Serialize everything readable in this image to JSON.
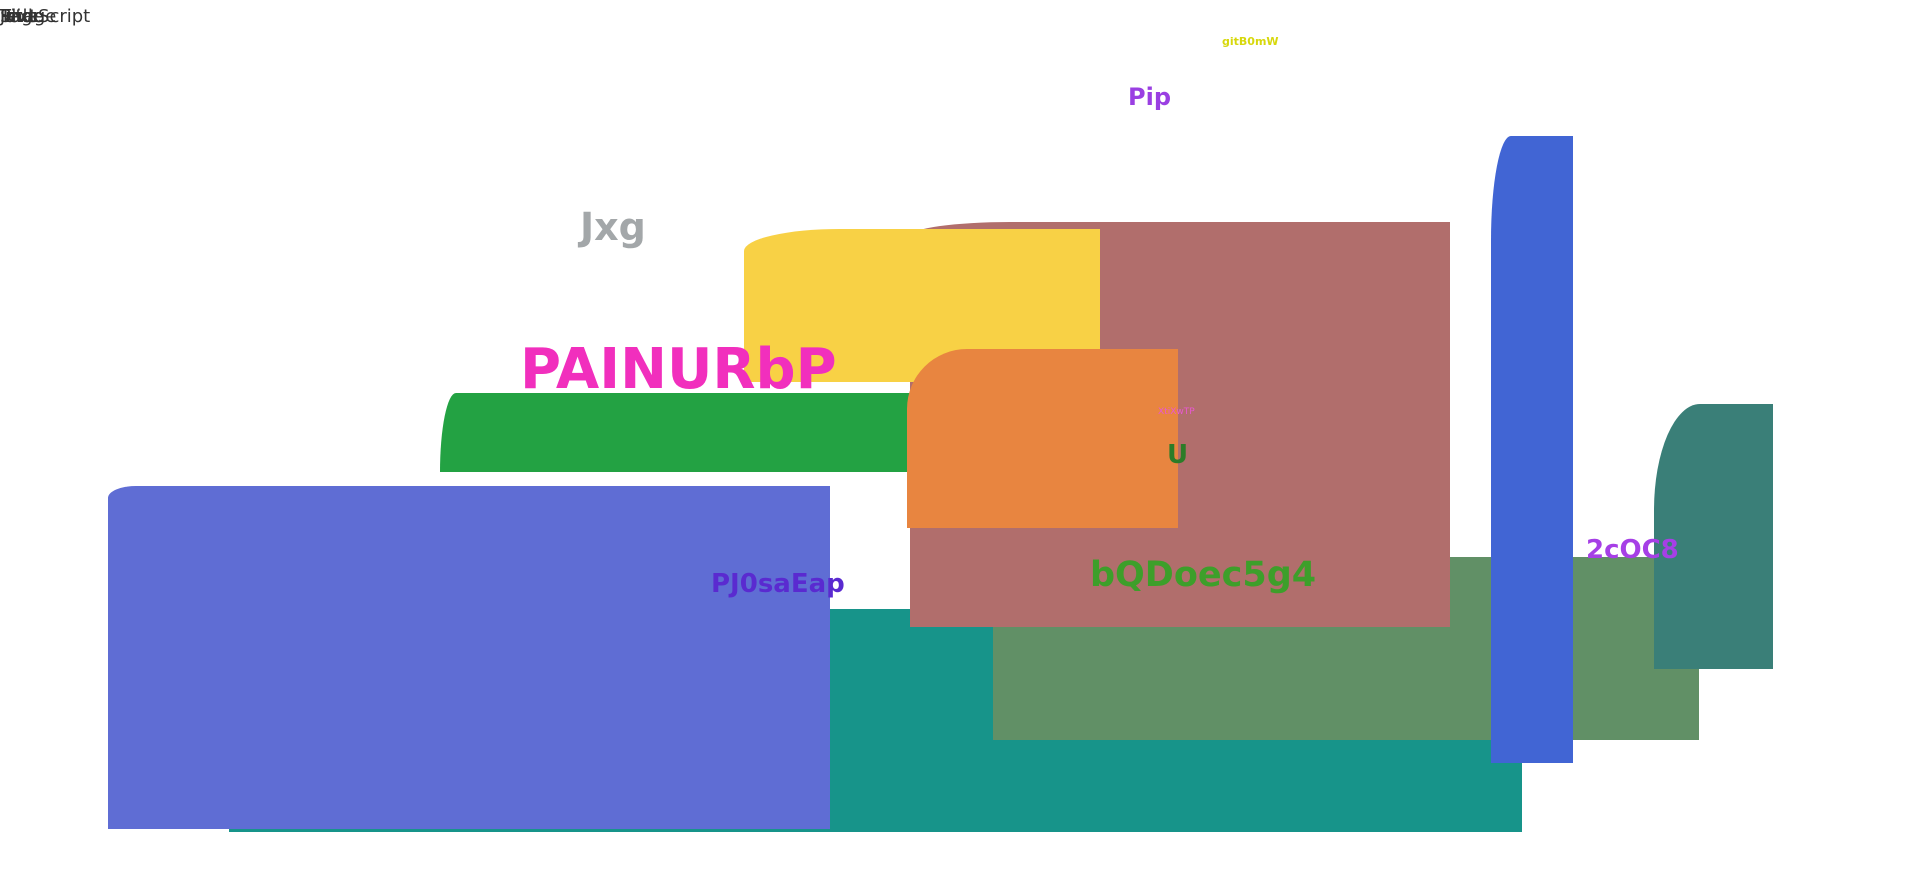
{
  "corner_texts": [
    "JavaScript",
    "Image",
    "Page",
    "Slide",
    "Title",
    "Text"
  ],
  "labels": {
    "gitbomw": "gitB0mW",
    "pip": "Pip",
    "jxg": "Jxg",
    "painurbp": "PAINURbP",
    "small": "XtiXwTP",
    "u": "U",
    "coc8": "2cOC8",
    "pj0saeap": "PJ0saEap",
    "bqdoec5g4": "bQDoec5g4"
  },
  "colors": {
    "teal_wide": "#17948a",
    "sage": "#619066",
    "rose": "#b16e6c",
    "slate_blue": "#5f6dd4",
    "green": "#23a243",
    "yellow": "#f8d145",
    "orange": "#e88540",
    "pine": "#3a7f78",
    "royal_blue": "#4165d4"
  }
}
